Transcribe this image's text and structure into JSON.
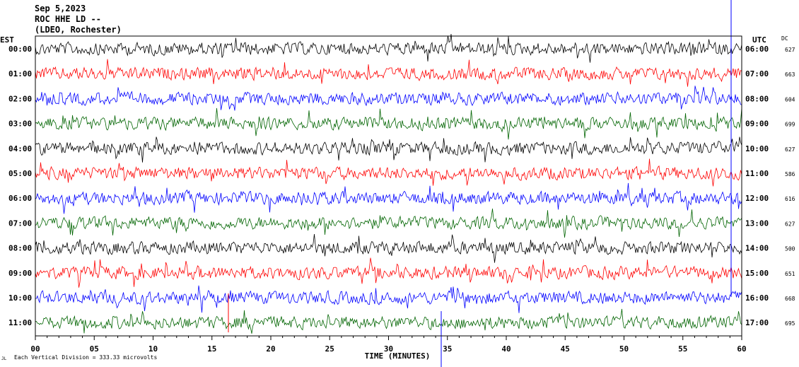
{
  "header": {
    "date": "Sep 5,2023",
    "station": "ROC HHE LD --",
    "network": "(LDEO, Rochester)"
  },
  "chart_data": {
    "type": "line",
    "xlabel": "TIME (MINUTES)",
    "xlim": [
      0,
      60
    ],
    "x_ticks": [
      "00",
      "05",
      "10",
      "15",
      "20",
      "25",
      "30",
      "35",
      "40",
      "45",
      "50",
      "55",
      "60"
    ],
    "left_axis_title": "EST",
    "right_axis_title": "UTC",
    "dc_title": "DC",
    "left_labels": [
      "00:00",
      "01:00",
      "02:00",
      "03:00",
      "04:00",
      "05:00",
      "06:00",
      "07:00",
      "08:00",
      "09:00",
      "10:00",
      "11:00"
    ],
    "right_labels": [
      "06:00",
      "07:00",
      "08:00",
      "09:00",
      "10:00",
      "11:00",
      "12:00",
      "13:00",
      "14:00",
      "15:00",
      "16:00",
      "17:00"
    ],
    "dc_values": [
      "627",
      "663",
      "604",
      "699",
      "627",
      "586",
      "616",
      "627",
      "500",
      "651",
      "668",
      "695"
    ],
    "trace_colors": [
      "#000000",
      "#ff0000",
      "#0000ff",
      "#006400",
      "#000000",
      "#ff0000",
      "#0000ff",
      "#006400",
      "#000000",
      "#ff0000",
      "#0000ff",
      "#006400"
    ],
    "marker_colors": [
      "#0000ff",
      "#ff0000"
    ],
    "scale_note": "Each Vertical Division =  333.33 microvolts",
    "corner_note": "JL"
  }
}
